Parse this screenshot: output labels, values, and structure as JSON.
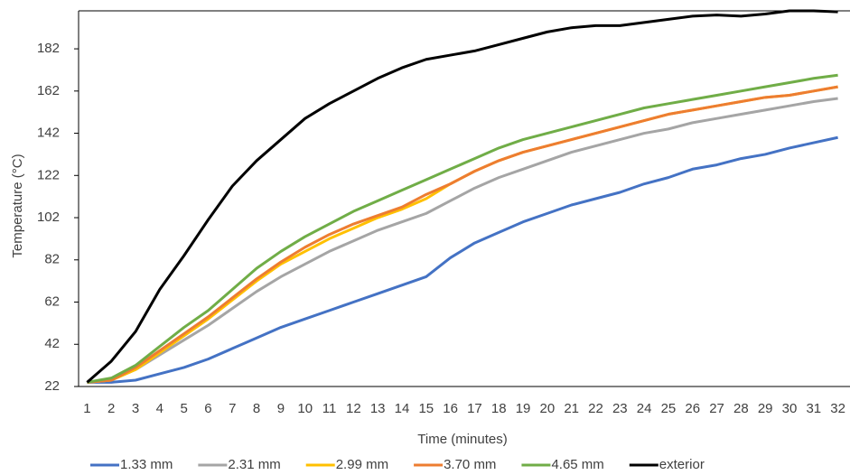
{
  "chart_data": {
    "type": "line",
    "y_label": "Temperature (°C)",
    "x_label": "Time (minutes)",
    "categories": [
      "1",
      "2",
      "3",
      "4",
      "5",
      "6",
      "7",
      "8",
      "9",
      "10",
      "11",
      "12",
      "13",
      "14",
      "15",
      "16",
      "17",
      "18",
      "19",
      "20",
      "21",
      "22",
      "23",
      "24",
      "25",
      "26",
      "27",
      "28",
      "29",
      "30",
      "31",
      "32"
    ],
    "ylim": [
      22,
      200
    ],
    "yticks": [
      22,
      42,
      62,
      82,
      102,
      122,
      142,
      162,
      182
    ],
    "grid": false,
    "legend": "bottom",
    "series": [
      {
        "name": "1.33 mm",
        "color": "#4472c4",
        "values": [
          24,
          24,
          25,
          28,
          31,
          35,
          40,
          45,
          50,
          54,
          58,
          62,
          66,
          70,
          74,
          83,
          90,
          95,
          100,
          104,
          108,
          111,
          114,
          118,
          121,
          125,
          127,
          130,
          132,
          135,
          137.5,
          140
        ]
      },
      {
        "name": "2.31 mm",
        "color": "#a5a5a5",
        "values": [
          24,
          25,
          30,
          37,
          44,
          51,
          59,
          67,
          74,
          80,
          86,
          91,
          96,
          100,
          104,
          110,
          116,
          121,
          125,
          129,
          133,
          136,
          139,
          142,
          144,
          147,
          149,
          151,
          153,
          155,
          157,
          158.5
        ]
      },
      {
        "name": "2.99 mm",
        "color": "#ffc000",
        "values": [
          24,
          25,
          30,
          38,
          46,
          54,
          63,
          72,
          80,
          86,
          92,
          97,
          102,
          106,
          111,
          118,
          124,
          129,
          133,
          136,
          139,
          142,
          145,
          148,
          151,
          153,
          155,
          157,
          159,
          160,
          162,
          164
        ]
      },
      {
        "name": "3.70 mm",
        "color": "#ed7d31",
        "values": [
          24,
          25,
          31,
          39,
          47,
          55,
          64,
          73,
          81,
          88,
          94,
          99,
          103,
          107,
          113,
          118,
          124,
          129,
          133,
          136,
          139,
          142,
          145,
          148,
          151,
          153,
          155,
          157,
          159,
          160,
          162,
          164
        ]
      },
      {
        "name": "4.65 mm",
        "color": "#70ad47",
        "values": [
          24,
          26,
          32,
          41,
          50,
          58,
          68,
          78,
          86,
          93,
          99,
          105,
          110,
          115,
          120,
          125,
          130,
          135,
          139,
          142,
          145,
          148,
          151,
          154,
          156,
          158,
          160,
          162,
          164,
          166,
          168,
          169.5
        ]
      },
      {
        "name": "exterior",
        "color": "#000000",
        "values": [
          24,
          34,
          48,
          68,
          84,
          101,
          117,
          129,
          139,
          149,
          156,
          162,
          168,
          173,
          177,
          179,
          181,
          184,
          187,
          190,
          192,
          193,
          193,
          194.5,
          196,
          197.5,
          198,
          197.5,
          198.5,
          200,
          200,
          199.5
        ]
      }
    ]
  }
}
